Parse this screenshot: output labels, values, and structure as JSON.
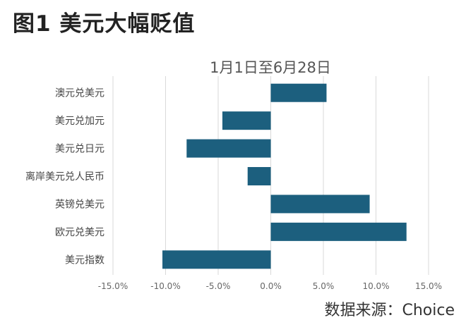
{
  "figure": {
    "title": "图1  美元大幅贬值",
    "source": "数据来源：Choice"
  },
  "chart_data": {
    "type": "bar",
    "orientation": "horizontal",
    "title": "1月1日至6月28日",
    "categories": [
      "澳元兑美元",
      "美元兑加元",
      "美元兑日元",
      "离岸美元兑人民币",
      "英镑兑美元",
      "欧元兑美元",
      "美元指数"
    ],
    "values": [
      5.3,
      -4.6,
      -8.0,
      -2.2,
      9.4,
      12.9,
      -10.3
    ],
    "xlim": [
      -15,
      15
    ],
    "xticks": [
      -15,
      -10,
      -5,
      0,
      5,
      10,
      15
    ],
    "xtick_labels": [
      "-15.0%",
      "-10.0%",
      "-5.0%",
      "0.0%",
      "5.0%",
      "10.0%",
      "15.0%"
    ],
    "xlabel": "",
    "ylabel": "",
    "grid": "vertical",
    "bar_color": "#1c5f7e"
  }
}
